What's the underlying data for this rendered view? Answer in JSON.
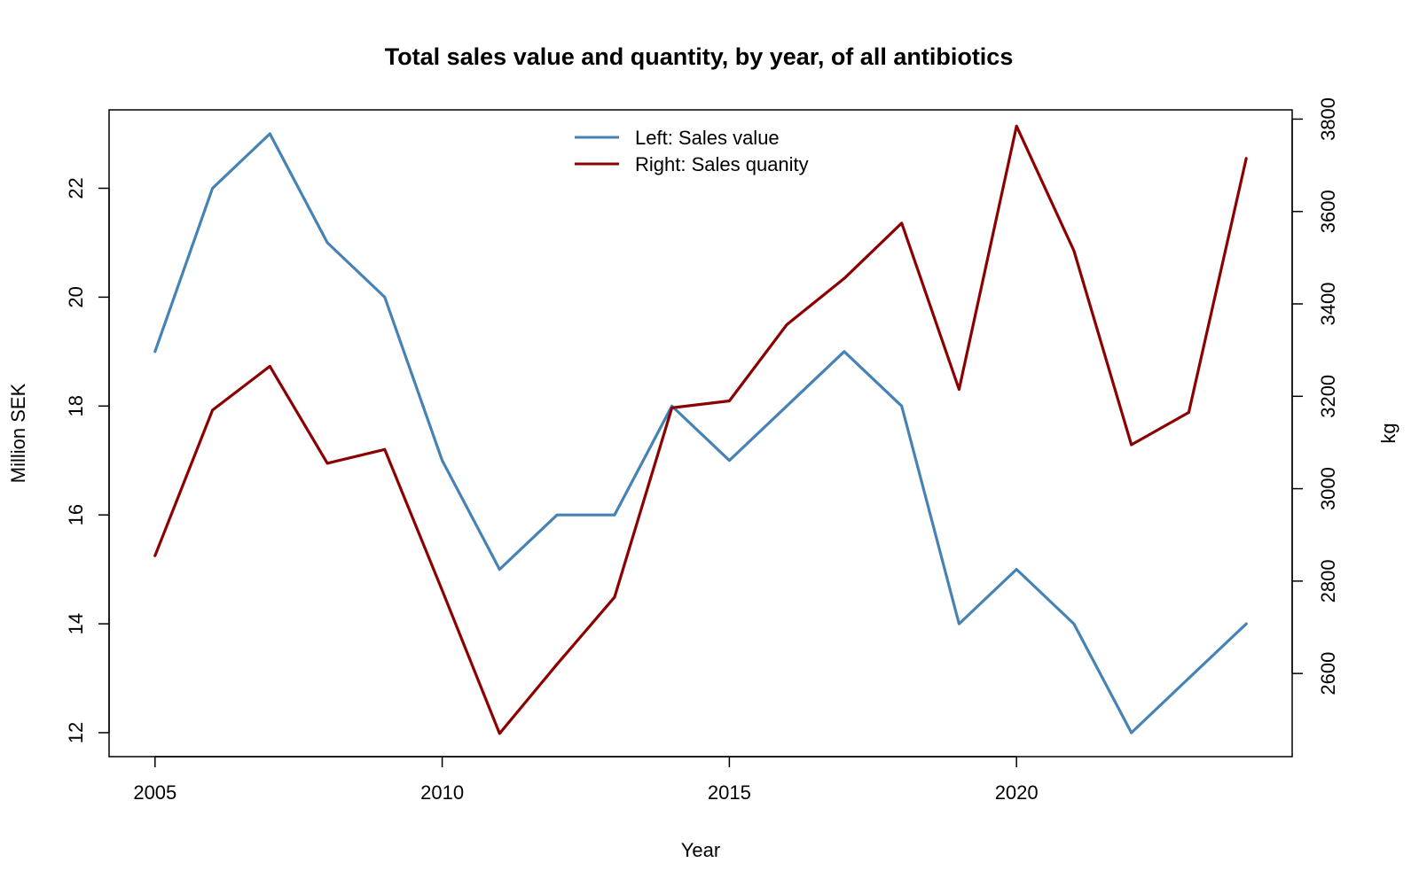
{
  "chart_data": {
    "type": "line",
    "title": "Total sales value and quantity, by year, of all antibiotics",
    "xlabel": "Year",
    "ylabel_left": "Million SEK",
    "ylabel_right": "kg",
    "x": [
      2005,
      2006,
      2007,
      2008,
      2009,
      2010,
      2011,
      2012,
      2013,
      2014,
      2015,
      2016,
      2017,
      2018,
      2019,
      2020,
      2021,
      2022,
      2023,
      2024
    ],
    "xlim": [
      2004.2,
      2024.8
    ],
    "x_ticks": [
      "2005",
      "2010",
      "2015",
      "2020"
    ],
    "left_axis": {
      "ylim": [
        11.56,
        23.44
      ],
      "ticks": [
        "12",
        "14",
        "16",
        "18",
        "20",
        "22"
      ]
    },
    "right_axis": {
      "ylim": [
        2420,
        3820
      ],
      "ticks": [
        "2600",
        "2800",
        "3000",
        "3200",
        "3400",
        "3600",
        "3800"
      ]
    },
    "series": [
      {
        "name": "Left: Sales value",
        "axis": "left",
        "color": "#4682B4",
        "values": [
          19,
          22,
          23,
          21,
          20,
          17,
          15,
          16,
          16,
          18,
          17,
          18,
          19,
          18,
          14,
          15,
          14,
          12,
          13,
          14
        ]
      },
      {
        "name": "Right: Sales quanity",
        "axis": "right",
        "color": "#8B0000",
        "values": [
          2855,
          3170,
          3265,
          3055,
          3085,
          2780,
          2470,
          2620,
          2765,
          3175,
          3190,
          3355,
          3455,
          3575,
          3215,
          3785,
          3515,
          3095,
          3165,
          3715
        ]
      }
    ],
    "legend_position": "top-center",
    "grid": false
  }
}
